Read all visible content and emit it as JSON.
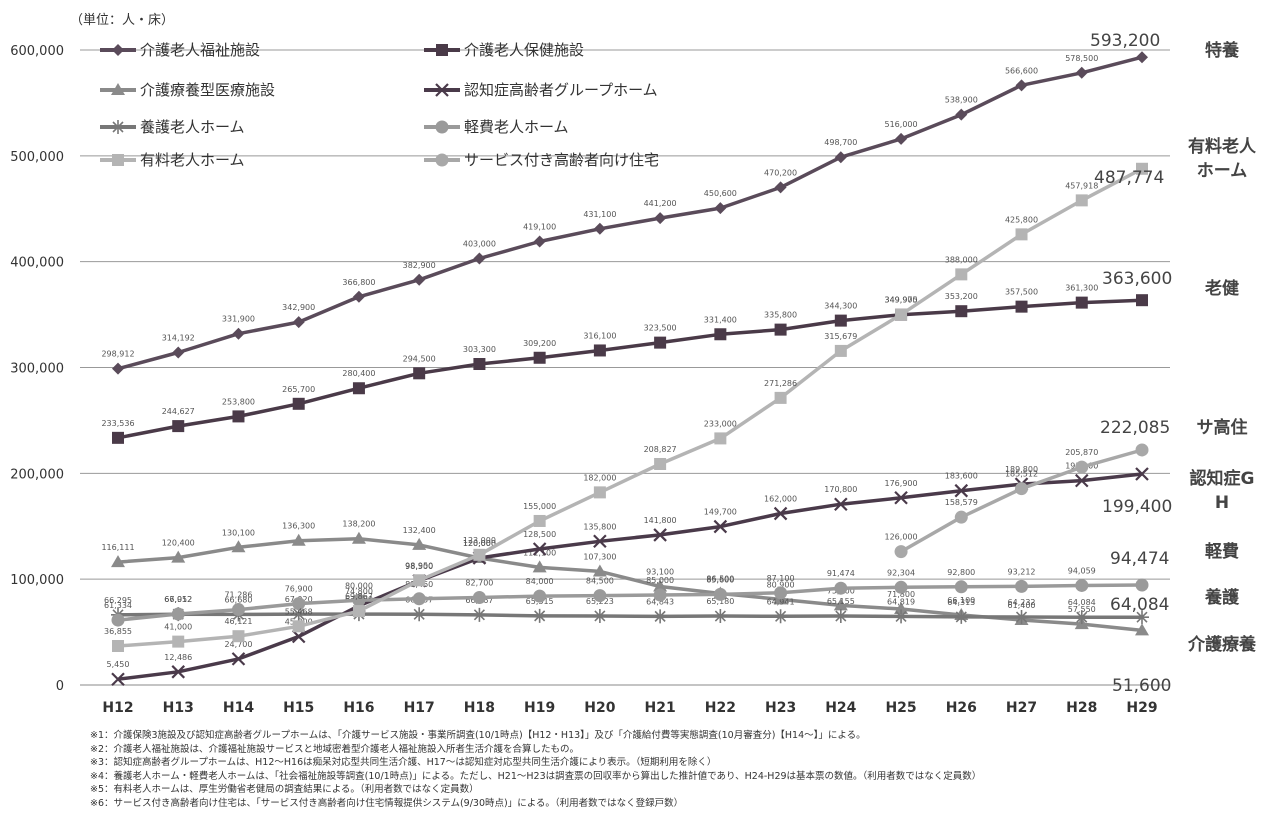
{
  "chart_data": {
    "type": "line",
    "unit_label": "（単位：人・床）",
    "x": [
      "H12",
      "H13",
      "H14",
      "H15",
      "H16",
      "H17",
      "H18",
      "H19",
      "H20",
      "H21",
      "H22",
      "H23",
      "H24",
      "H25",
      "H26",
      "H27",
      "H28",
      "H29"
    ],
    "ylim": [
      0,
      600000
    ],
    "yticks": [
      0,
      100000,
      200000,
      300000,
      400000,
      500000,
      600000
    ],
    "ytick_labels": [
      "0",
      "100,000",
      "200,000",
      "300,000",
      "400,000",
      "500,000",
      "600,000"
    ],
    "grid": true,
    "legend_position": "top-left",
    "series": [
      {
        "name": "介護老人福祉施設",
        "color": "#5a4b5a",
        "marker": "diamond",
        "end_value": "593,200",
        "end_label": "特養",
        "values": [
          298912,
          314192,
          331900,
          342900,
          366800,
          382900,
          403000,
          419100,
          431100,
          441200,
          450600,
          470200,
          498700,
          516000,
          538900,
          566600,
          578500,
          593200
        ],
        "labels": [
          "298,912",
          "314,192",
          "331,900",
          "342,900",
          "366,800",
          "382,900",
          "403,000",
          "419,100",
          "431,100",
          "441,200",
          "450,600",
          "470,200",
          "498,700",
          "516,000",
          "538,900",
          "566,600",
          "578,500",
          ""
        ]
      },
      {
        "name": "介護老人保健施設",
        "color": "#4a3a48",
        "marker": "square",
        "end_value": "363,600",
        "end_label": "老健",
        "values": [
          233536,
          244627,
          253800,
          265700,
          280400,
          294500,
          303300,
          309200,
          316100,
          323500,
          331400,
          335800,
          344300,
          349900,
          353200,
          357500,
          361300,
          363600
        ],
        "labels": [
          "233,536",
          "244,627",
          "253,800",
          "265,700",
          "280,400",
          "294,500",
          "303,300",
          "309,200",
          "316,100",
          "323,500",
          "331,400",
          "335,800",
          "344,300",
          "349,900",
          "353,200",
          "357,500",
          "361,300",
          ""
        ]
      },
      {
        "name": "介護療養型医療施設",
        "color": "#8a8a8a",
        "marker": "triangle",
        "end_value": "51,600",
        "end_label": "介護療養",
        "values": [
          116111,
          120400,
          130100,
          136300,
          138200,
          132400,
          120000,
          111100,
          107300,
          93100,
          86500,
          80900,
          75200,
          71800,
          66100,
          61400,
          57550,
          51600
        ],
        "labels": [
          "116,111",
          "120,400",
          "130,100",
          "136,300",
          "138,200",
          "132,400",
          "120,000",
          "111,100",
          "107,300",
          "93,100",
          "86,500",
          "80,900",
          "75,200",
          "71,800",
          "66,100",
          "61,400",
          "57,550",
          ""
        ]
      },
      {
        "name": "認知症高齢者グループホーム",
        "color": "#4a3a4a",
        "marker": "x",
        "end_value": "199,400",
        "end_label": "認知症GH",
        "values": [
          5450,
          12486,
          24700,
          45800,
          74800,
          98500,
          120000,
          128500,
          135800,
          141800,
          149700,
          162000,
          170800,
          176900,
          183600,
          189800,
          193100,
          199400
        ],
        "labels": [
          "5,450",
          "12,486",
          "24,700",
          "45,800",
          "74,800",
          "98,500",
          "120,000",
          "128,500",
          "135,800",
          "141,800",
          "149,700",
          "162,000",
          "170,800",
          "176,900",
          "183,600",
          "189,800",
          "193,100",
          ""
        ]
      },
      {
        "name": "養護老人ホーム",
        "color": "#777777",
        "marker": "star",
        "end_value": "64,084",
        "end_label": "養護",
        "values": [
          66295,
          66912,
          66680,
          67020,
          67000,
          66837,
          66267,
          65315,
          65223,
          64843,
          65180,
          64941,
          65155,
          64819,
          64313,
          64232,
          64084,
          64084
        ],
        "labels": [
          "66,295",
          "66,912",
          "66,680",
          "67,020",
          "67,000",
          "66,837",
          "66,267",
          "65,315",
          "65,223",
          "64,843",
          "65,180",
          "64,941",
          "65,155",
          "64,819",
          "64,313",
          "64,232",
          "64,084",
          ""
        ]
      },
      {
        "name": "軽費老人ホーム",
        "color": "#9a9a9a",
        "marker": "circle",
        "end_value": "94,474",
        "end_label": "軽費",
        "values": [
          61334,
          67052,
          71286,
          76900,
          80000,
          81460,
          82700,
          84000,
          84500,
          85000,
          85600,
          87100,
          91474,
          92304,
          92800,
          93212,
          94059,
          94474
        ],
        "labels": [
          "61,334",
          "67,052",
          "71,286",
          "76,900",
          "80,000",
          "81,460",
          "82,700",
          "84,000",
          "84,500",
          "85,000",
          "85,600",
          "87,100",
          "91,474",
          "92,304",
          "92,800",
          "93,212",
          "94,059",
          ""
        ]
      },
      {
        "name": "有料老人ホーム",
        "color": "#b4b4b4",
        "marker": "square",
        "end_value": "487,774",
        "end_label": "有料老人ホーム",
        "values": [
          36855,
          41000,
          46121,
          55468,
          69867,
          98950,
          123000,
          155000,
          182000,
          208827,
          233000,
          271286,
          315679,
          349975,
          388000,
          425800,
          457918,
          487774
        ],
        "labels": [
          "36,855",
          "41,000",
          "46,121",
          "55,468",
          "69,867",
          "98,950",
          "123,000",
          "155,000",
          "182,000",
          "208,827",
          "233,000",
          "271,286",
          "315,679",
          "349,975",
          "388,000",
          "425,800",
          "457,918",
          ""
        ]
      },
      {
        "name": "サービス付き高齢者向け住宅",
        "color": "#a8a8a8",
        "marker": "circle",
        "end_value": "222,085",
        "end_label": "サ高住",
        "values": [
          null,
          null,
          null,
          null,
          null,
          null,
          null,
          null,
          null,
          null,
          null,
          null,
          null,
          126000,
          158579,
          185512,
          205870,
          222085
        ],
        "labels": [
          "",
          "",
          "",
          "",
          "",
          "",
          "",
          "",
          "",
          "",
          "",
          "",
          "",
          "126,000",
          "158,579",
          "185,512",
          "205,870",
          ""
        ]
      }
    ]
  },
  "notes": [
    "※1：介護保険3施設及び認知症高齢者グループホームは、「介護サービス施設・事業所調査(10/1時点)【H12・H13】」及び「介護給付費等実態調査(10月審査分)【H14〜】」による。",
    "※2：介護老人福祉施設は、介護福祉施設サービスと地域密着型介護老人福祉施設入所者生活介護を合算したもの。",
    "※3：認知症高齢者グループホームは、H12〜H16は痴呆対応型共同生活介護、H17〜は認知症対応型共同生活介護により表示。（短期利用を除く）",
    "※4：養護老人ホーム・軽費老人ホームは、「社会福祉施設等調査(10/1時点)」による。ただし、H21〜H23は調査票の回収率から算出した推計値であり、H24-H29は基本票の数値。（利用者数ではなく定員数）",
    "※5：有料老人ホームは、厚生労働省老健局の調査結果による。（利用者数ではなく定員数）",
    "※6：サービス付き高齢者向け住宅は、「サービス付き高齢者向け住宅情報提供システム(9/30時点)」による。（利用者数ではなく登録戸数）"
  ]
}
